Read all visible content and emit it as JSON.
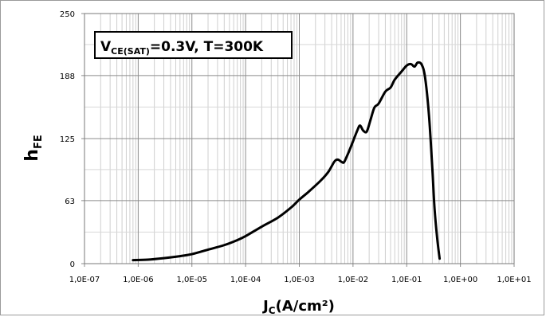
{
  "chart_data": {
    "type": "line",
    "x_scale": "log",
    "xlim": [
      1e-07,
      10
    ],
    "ylim": [
      0,
      250
    ],
    "x_tick_labels": [
      "1,0E-07",
      "1,0E-06",
      "1,0E-05",
      "1,0E-04",
      "1,0E-03",
      "1,0E-02",
      "1,0E-01",
      "1,0E+00",
      "1,0E+01"
    ],
    "y_ticks": [
      0,
      63,
      125,
      188,
      250
    ],
    "y_tick_labels": [
      "0",
      "63",
      "125",
      "188",
      "250"
    ],
    "xlabel": {
      "main": "J",
      "sub": "C",
      "rest": "(A/cm²)"
    },
    "ylabel": {
      "main": "h",
      "sub": "FE"
    },
    "annotation": {
      "pre": "V",
      "sub": "CE(SAT)",
      "post": "=0.3V,  T=300K"
    },
    "grid": true,
    "series": [
      {
        "color": "#000000",
        "points": [
          [
            8e-07,
            3.5
          ],
          [
            1.5e-06,
            4
          ],
          [
            3e-06,
            5.5
          ],
          [
            6e-06,
            7.5
          ],
          [
            1e-05,
            9.5
          ],
          [
            2e-05,
            14
          ],
          [
            4e-05,
            18.5
          ],
          [
            7e-05,
            23.5
          ],
          [
            0.0001,
            27.5
          ],
          [
            0.0002,
            37
          ],
          [
            0.0004,
            46
          ],
          [
            0.0007,
            56
          ],
          [
            0.001,
            64
          ],
          [
            0.0015,
            72
          ],
          [
            0.0025,
            83
          ],
          [
            0.0035,
            92
          ],
          [
            0.0045,
            102
          ],
          [
            0.0052,
            104
          ],
          [
            0.006,
            102
          ],
          [
            0.0067,
            101
          ],
          [
            0.0075,
            106
          ],
          [
            0.009,
            116
          ],
          [
            0.012,
            133
          ],
          [
            0.0135,
            138
          ],
          [
            0.0155,
            133
          ],
          [
            0.018,
            132
          ],
          [
            0.021,
            143
          ],
          [
            0.025,
            156
          ],
          [
            0.03,
            160
          ],
          [
            0.04,
            172
          ],
          [
            0.05,
            176
          ],
          [
            0.06,
            184
          ],
          [
            0.08,
            192
          ],
          [
            0.1,
            198
          ],
          [
            0.12,
            199.5
          ],
          [
            0.14,
            197
          ],
          [
            0.16,
            201
          ],
          [
            0.19,
            199
          ],
          [
            0.22,
            186
          ],
          [
            0.26,
            148
          ],
          [
            0.3,
            95
          ],
          [
            0.33,
            55
          ],
          [
            0.37,
            25
          ],
          [
            0.41,
            5
          ]
        ]
      }
    ]
  }
}
